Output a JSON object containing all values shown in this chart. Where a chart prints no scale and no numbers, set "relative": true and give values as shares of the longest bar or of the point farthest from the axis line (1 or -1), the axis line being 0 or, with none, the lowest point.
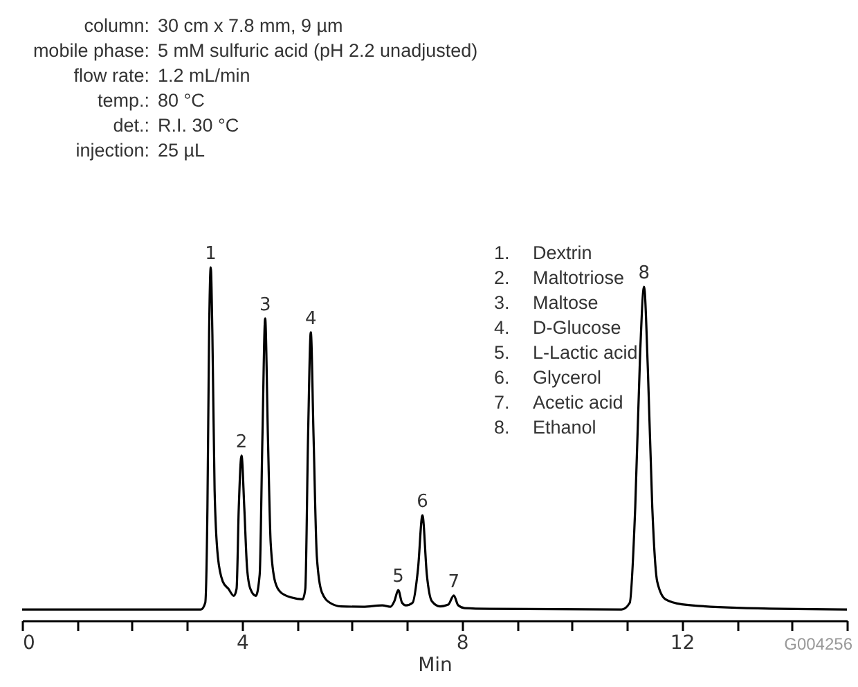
{
  "chart_data": {
    "type": "line",
    "xlabel": "Min",
    "relative": true,
    "tick_labels": "x",
    "xlim": [
      0,
      15
    ],
    "xticks": [
      0,
      {
        "value": 1,
        "label": null
      },
      {
        "value": 2,
        "label": null
      },
      {
        "value": 3,
        "label": null
      },
      4,
      {
        "value": 5,
        "label": null
      },
      {
        "value": 6,
        "label": null
      },
      {
        "value": 7,
        "label": null
      },
      8,
      {
        "value": 9,
        "label": null
      },
      {
        "value": 10,
        "label": null
      },
      {
        "value": 11,
        "label": null
      },
      12,
      {
        "value": 13,
        "label": null
      },
      {
        "value": 14,
        "label": null
      },
      {
        "value": 15,
        "label": null
      }
    ],
    "x": [
      0,
      3.25,
      3.33,
      3.37,
      3.4,
      3.43,
      3.46,
      3.5,
      3.56,
      3.65,
      3.75,
      3.85,
      3.9,
      3.94,
      3.99,
      4.04,
      4.09,
      4.15,
      4.25,
      4.32,
      4.37,
      4.42,
      4.47,
      4.52,
      4.6,
      4.7,
      4.9,
      5.1,
      5.15,
      5.2,
      5.25,
      5.3,
      5.36,
      5.45,
      5.6,
      5.8,
      6.2,
      6.55,
      6.7,
      6.77,
      6.84,
      6.91,
      6.98,
      7.1,
      7.2,
      7.28,
      7.36,
      7.45,
      7.6,
      7.75,
      7.85,
      7.93,
      8.05,
      8.5,
      10.9,
      11.05,
      11.15,
      11.24,
      11.31,
      11.38,
      11.46,
      11.55,
      11.7,
      12,
      13,
      15
    ],
    "series": [
      {
        "color": "#000000",
        "values": [
          0.031,
          0.031,
          0.05,
          0.32,
          0.81,
          1.0,
          0.81,
          0.37,
          0.18,
          0.11,
          0.09,
          0.07,
          0.09,
          0.32,
          0.467,
          0.32,
          0.15,
          0.09,
          0.07,
          0.13,
          0.52,
          0.855,
          0.52,
          0.22,
          0.11,
          0.08,
          0.065,
          0.06,
          0.09,
          0.52,
          0.816,
          0.52,
          0.18,
          0.08,
          0.05,
          0.04,
          0.039,
          0.043,
          0.039,
          0.055,
          0.086,
          0.05,
          0.043,
          0.05,
          0.147,
          0.298,
          0.13,
          0.055,
          0.04,
          0.045,
          0.071,
          0.043,
          0.035,
          0.033,
          0.031,
          0.05,
          0.32,
          0.76,
          0.945,
          0.71,
          0.32,
          0.11,
          0.06,
          0.046,
          0.036,
          0.031
        ]
      }
    ],
    "annotations": [
      "column: 30 cm x 7.8 mm, 9 µm",
      "mobile phase: 5 mM sulfuric acid (pH 2.2 unadjusted)",
      "flow rate: 1.2 mL/min",
      "temp.: 80 °C",
      "det.: R.I. 30 °C",
      "injection: 25 µL",
      "1. Dextrin",
      "2. Maltotriose",
      "3. Maltose",
      "4. D-Glucose",
      "5. L-Lactic acid",
      "6. Glycerol",
      "7. Acetic acid",
      "8. Ethanol",
      {
        "text": "1",
        "x": 3.43,
        "y": 1.0
      },
      {
        "text": "2",
        "x": 3.99,
        "y": 0.467
      },
      {
        "text": "3",
        "x": 4.42,
        "y": 0.855
      },
      {
        "text": "4",
        "x": 5.25,
        "y": 0.816
      },
      {
        "text": "5",
        "x": 6.84,
        "y": 0.086
      },
      {
        "text": "6",
        "x": 7.28,
        "y": 0.298
      },
      {
        "text": "7",
        "x": 7.85,
        "y": 0.071
      },
      {
        "text": "8",
        "x": 11.31,
        "y": 0.945
      },
      "G004256"
    ]
  }
}
